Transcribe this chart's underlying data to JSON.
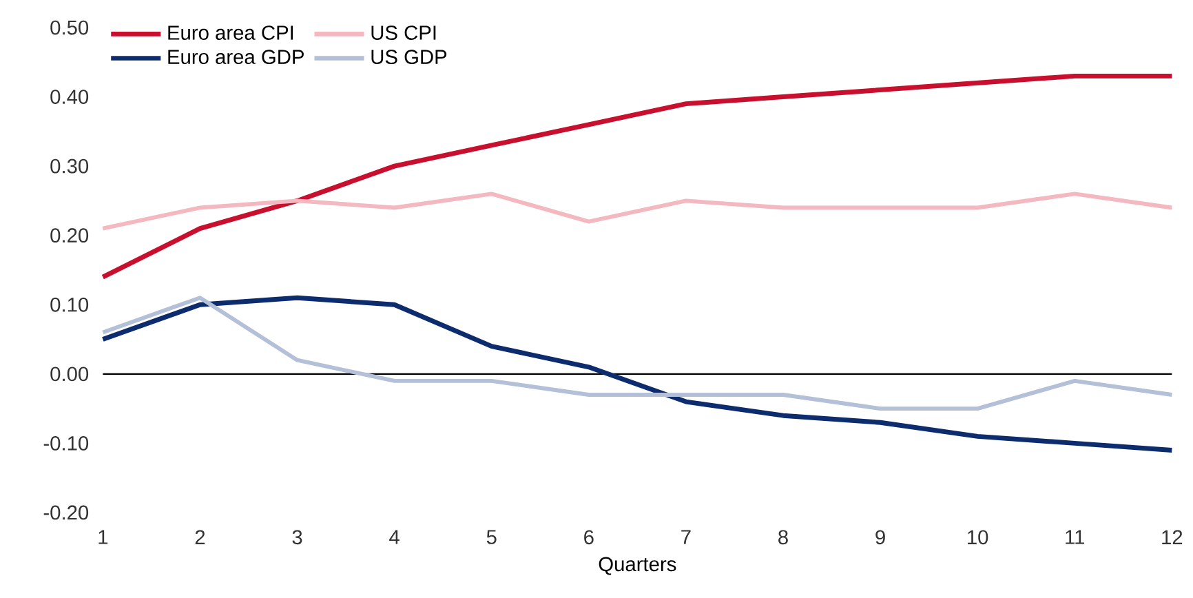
{
  "chart_data": {
    "type": "line",
    "xlabel": "Quarters",
    "x": [
      1,
      2,
      3,
      4,
      5,
      6,
      7,
      8,
      9,
      10,
      11,
      12
    ],
    "series": [
      {
        "name": "Euro area CPI",
        "color": "#c8102e",
        "values": [
          0.14,
          0.21,
          0.25,
          0.3,
          0.33,
          0.36,
          0.39,
          0.4,
          0.41,
          0.42,
          0.43,
          0.43
        ]
      },
      {
        "name": "US CPI",
        "color": "#f4b8c0",
        "values": [
          0.21,
          0.24,
          0.25,
          0.24,
          0.26,
          0.22,
          0.25,
          0.24,
          0.24,
          0.24,
          0.26,
          0.24
        ]
      },
      {
        "name": "Euro area GDP",
        "color": "#0c2c6e",
        "values": [
          0.05,
          0.1,
          0.11,
          0.1,
          0.04,
          0.01,
          -0.04,
          -0.06,
          -0.07,
          -0.09,
          -0.1,
          -0.11
        ]
      },
      {
        "name": "US GDP",
        "color": "#b4c0d8",
        "values": [
          0.06,
          0.11,
          0.02,
          -0.01,
          -0.01,
          -0.03,
          -0.03,
          -0.03,
          -0.05,
          -0.05,
          -0.01,
          -0.03
        ]
      }
    ],
    "xlim": [
      1,
      12
    ],
    "xticks": [
      1,
      2,
      3,
      4,
      5,
      6,
      7,
      8,
      9,
      10,
      11,
      12
    ],
    "ylim": [
      -0.2,
      0.5
    ],
    "yticks": [
      {
        "value": -0.2,
        "label": "-0.20"
      },
      {
        "value": -0.1,
        "label": "-0.10"
      },
      {
        "value": 0,
        "label": "0.00"
      },
      {
        "value": 0.1,
        "label": "0.10"
      },
      {
        "value": 0.2,
        "label": "0.20"
      },
      {
        "value": 0.3,
        "label": "0.30"
      },
      {
        "value": 0.4,
        "label": "0.40"
      },
      {
        "value": 0.5,
        "label": "0.50"
      }
    ],
    "ref_lines": [
      {
        "axis": "y",
        "value": 0,
        "color": "#000000"
      }
    ],
    "grid": false,
    "legend": "top left",
    "marker": "none",
    "line_style": "solid"
  }
}
